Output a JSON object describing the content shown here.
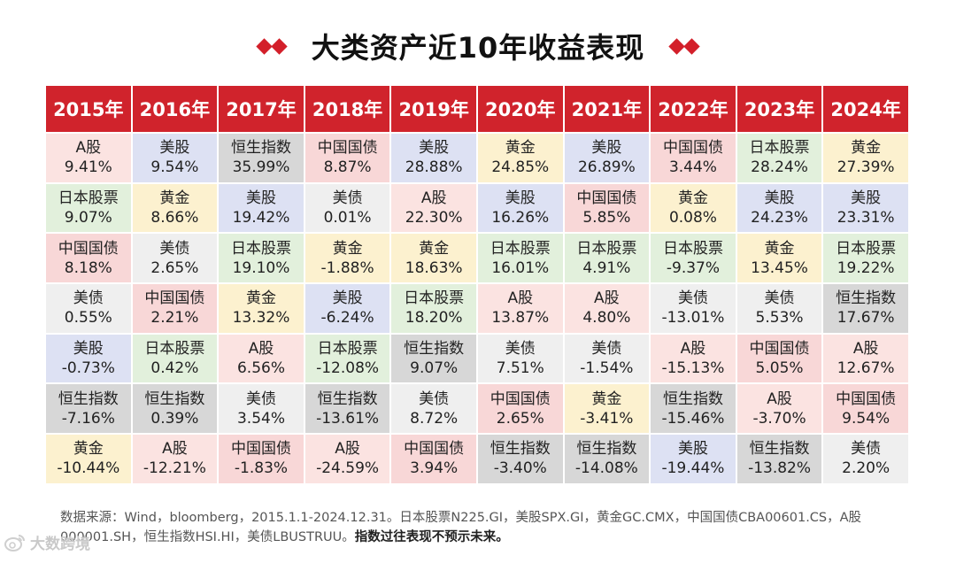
{
  "title": "大类资产近10年收益表现",
  "colors": {
    "header": "#d0232c",
    "A股": "#fbe3e1",
    "美股": "#dde1f3",
    "恒生指数": "#d7d7d7",
    "中国国债": "#f8d7d7",
    "日本股票": "#e2f0dc",
    "黄金": "#fcf1cf",
    "美债": "#efefef"
  },
  "chart_data": {
    "type": "table",
    "columns": [
      "2015年",
      "2016年",
      "2017年",
      "2018年",
      "2019年",
      "2020年",
      "2021年",
      "2022年",
      "2023年",
      "2024年"
    ],
    "rows": [
      [
        {
          "asset": "A股",
          "value": "9.41%"
        },
        {
          "asset": "美股",
          "value": "9.54%"
        },
        {
          "asset": "恒生指数",
          "value": "35.99%"
        },
        {
          "asset": "中国国债",
          "value": "8.87%"
        },
        {
          "asset": "美股",
          "value": "28.88%"
        },
        {
          "asset": "黄金",
          "value": "24.85%"
        },
        {
          "asset": "美股",
          "value": "26.89%"
        },
        {
          "asset": "中国国债",
          "value": "3.44%"
        },
        {
          "asset": "日本股票",
          "value": "28.24%"
        },
        {
          "asset": "黄金",
          "value": "27.39%"
        }
      ],
      [
        {
          "asset": "日本股票",
          "value": "9.07%"
        },
        {
          "asset": "黄金",
          "value": "8.66%"
        },
        {
          "asset": "美股",
          "value": "19.42%"
        },
        {
          "asset": "美债",
          "value": "0.01%"
        },
        {
          "asset": "A股",
          "value": "22.30%"
        },
        {
          "asset": "美股",
          "value": "16.26%"
        },
        {
          "asset": "中国国债",
          "value": "5.85%"
        },
        {
          "asset": "黄金",
          "value": "0.08%"
        },
        {
          "asset": "美股",
          "value": "24.23%"
        },
        {
          "asset": "美股",
          "value": "23.31%"
        }
      ],
      [
        {
          "asset": "中国国债",
          "value": "8.18%"
        },
        {
          "asset": "美债",
          "value": "2.65%"
        },
        {
          "asset": "日本股票",
          "value": "19.10%"
        },
        {
          "asset": "黄金",
          "value": "-1.88%"
        },
        {
          "asset": "黄金",
          "value": "18.63%"
        },
        {
          "asset": "日本股票",
          "value": "16.01%"
        },
        {
          "asset": "日本股票",
          "value": "4.91%"
        },
        {
          "asset": "日本股票",
          "value": "-9.37%"
        },
        {
          "asset": "黄金",
          "value": "13.45%"
        },
        {
          "asset": "日本股票",
          "value": "19.22%"
        }
      ],
      [
        {
          "asset": "美债",
          "value": "0.55%"
        },
        {
          "asset": "中国国债",
          "value": "2.21%"
        },
        {
          "asset": "黄金",
          "value": "13.32%"
        },
        {
          "asset": "美股",
          "value": "-6.24%"
        },
        {
          "asset": "日本股票",
          "value": "18.20%"
        },
        {
          "asset": "A股",
          "value": "13.87%"
        },
        {
          "asset": "A股",
          "value": "4.80%"
        },
        {
          "asset": "美债",
          "value": "-13.01%"
        },
        {
          "asset": "美债",
          "value": "5.53%"
        },
        {
          "asset": "恒生指数",
          "value": "17.67%"
        }
      ],
      [
        {
          "asset": "美股",
          "value": "-0.73%"
        },
        {
          "asset": "日本股票",
          "value": "0.42%"
        },
        {
          "asset": "A股",
          "value": "6.56%"
        },
        {
          "asset": "日本股票",
          "value": "-12.08%"
        },
        {
          "asset": "恒生指数",
          "value": "9.07%"
        },
        {
          "asset": "美债",
          "value": "7.51%"
        },
        {
          "asset": "美债",
          "value": "-1.54%"
        },
        {
          "asset": "A股",
          "value": "-15.13%"
        },
        {
          "asset": "中国国债",
          "value": "5.05%"
        },
        {
          "asset": "A股",
          "value": "12.67%"
        }
      ],
      [
        {
          "asset": "恒生指数",
          "value": "-7.16%"
        },
        {
          "asset": "恒生指数",
          "value": "0.39%"
        },
        {
          "asset": "美债",
          "value": "3.54%"
        },
        {
          "asset": "恒生指数",
          "value": "-13.61%"
        },
        {
          "asset": "美债",
          "value": "8.72%"
        },
        {
          "asset": "中国国债",
          "value": "2.65%"
        },
        {
          "asset": "黄金",
          "value": "-3.41%"
        },
        {
          "asset": "恒生指数",
          "value": "-15.46%"
        },
        {
          "asset": "A股",
          "value": "-3.70%"
        },
        {
          "asset": "中国国债",
          "value": "9.54%"
        }
      ],
      [
        {
          "asset": "黄金",
          "value": "-10.44%"
        },
        {
          "asset": "A股",
          "value": "-12.21%"
        },
        {
          "asset": "中国国债",
          "value": "-1.83%"
        },
        {
          "asset": "A股",
          "value": "-24.59%"
        },
        {
          "asset": "中国国债",
          "value": "3.94%"
        },
        {
          "asset": "恒生指数",
          "value": "-3.40%"
        },
        {
          "asset": "恒生指数",
          "value": "-14.08%"
        },
        {
          "asset": "美股",
          "value": "-19.44%"
        },
        {
          "asset": "恒生指数",
          "value": "-13.82%"
        },
        {
          "asset": "美债",
          "value": "2.20%"
        }
      ]
    ]
  },
  "footnote": {
    "line1": "数据来源：Wind，bloomberg，2015.1.1-2024.12.31。日本股票N225.GI，美股SPX.GI，黄金GC.CMX，中国国债CBA00601.CS，A股",
    "line2": "000001.SH，恒生指数HSI.HI，美债LBUSTRUU。",
    "disclaimer": "指数过往表现不预示未来。"
  },
  "logo": {
    "text": "大数跨境",
    "icon": "weibo-icon"
  }
}
